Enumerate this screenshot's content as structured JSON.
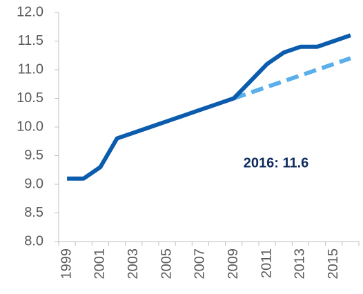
{
  "chart_data": {
    "type": "line",
    "categories": [
      "1999",
      null,
      "2001",
      null,
      "2003",
      null,
      "2005",
      null,
      "2007",
      null,
      "2009",
      null,
      "2011",
      null,
      "2013",
      null,
      "2015",
      null
    ],
    "series": [
      {
        "color": "#0b5cad",
        "style": "solid",
        "values": [
          9.1,
          9.1,
          9.3,
          9.8,
          9.9,
          10.0,
          10.1,
          10.2,
          10.3,
          10.4,
          10.5,
          10.8,
          11.1,
          11.3,
          11.4,
          11.4,
          11.5,
          11.6
        ]
      },
      {
        "color": "#5aaeea",
        "style": "dashed",
        "values": [
          null,
          null,
          null,
          null,
          null,
          null,
          null,
          null,
          null,
          null,
          10.5,
          10.6,
          10.7,
          10.8,
          10.9,
          11.0,
          11.1,
          11.2
        ]
      }
    ],
    "ylim": [
      8.0,
      12.0
    ],
    "yticks": [
      {
        "value": 8,
        "label": "8.0"
      },
      {
        "value": 8.5,
        "label": "8.5"
      },
      {
        "value": 9,
        "label": "9.0"
      },
      {
        "value": 9.5,
        "label": "9.5"
      },
      {
        "value": 10,
        "label": "10.0"
      },
      {
        "value": 10.5,
        "label": "10.5"
      },
      {
        "value": 11,
        "label": "11.0"
      },
      {
        "value": 11.5,
        "label": "11.5"
      },
      {
        "value": 12,
        "label": "12.0"
      }
    ],
    "annotations": [
      "2016: 11.6"
    ]
  }
}
